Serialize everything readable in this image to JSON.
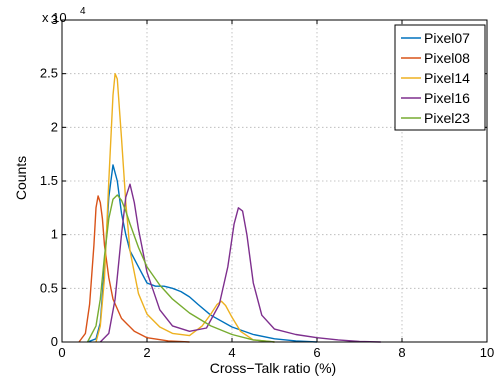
{
  "chart_data": {
    "type": "line",
    "xlabel": "Cross−Talk ratio (%)",
    "ylabel": "Counts",
    "xlim": [
      0,
      10
    ],
    "ylim": [
      0,
      30000
    ],
    "xticks": [
      0,
      2,
      4,
      6,
      8,
      10
    ],
    "xtick_labels": [
      "0",
      "2",
      "4",
      "6",
      "8",
      "10"
    ],
    "yticks": [
      0,
      5000,
      10000,
      15000,
      20000,
      25000,
      30000
    ],
    "ytick_labels": [
      "0",
      "0.5",
      "1",
      "1.5",
      "2",
      "2.5",
      "3"
    ],
    "y_multiplier": {
      "base": "x 10",
      "exponent": "4"
    },
    "grid": true,
    "legend_position": "top-right",
    "series": [
      {
        "name": "Pixel07",
        "color": "#0072bd",
        "x": [
          0.6,
          0.8,
          0.9,
          1.0,
          1.1,
          1.2,
          1.3,
          1.4,
          1.5,
          1.6,
          1.8,
          2.0,
          2.2,
          2.4,
          2.6,
          2.8,
          3.0,
          3.2,
          3.5,
          4.0,
          4.5,
          5.0,
          5.5,
          6.0
        ],
        "values": [
          0,
          300,
          1800,
          7000,
          13500,
          16500,
          15000,
          12000,
          10000,
          8500,
          7000,
          5500,
          5200,
          5200,
          5000,
          4700,
          4200,
          3500,
          2500,
          1400,
          700,
          300,
          100,
          0
        ]
      },
      {
        "name": "Pixel08",
        "color": "#d95319",
        "x": [
          0.4,
          0.55,
          0.65,
          0.75,
          0.8,
          0.85,
          0.9,
          0.95,
          1.0,
          1.1,
          1.2,
          1.4,
          1.7,
          2.0,
          2.5,
          3.0
        ],
        "values": [
          0,
          800,
          3500,
          9000,
          12500,
          13600,
          13000,
          11500,
          9000,
          6000,
          4000,
          2200,
          1000,
          400,
          100,
          0
        ]
      },
      {
        "name": "Pixel14",
        "color": "#edb120",
        "x": [
          0.8,
          0.9,
          1.0,
          1.1,
          1.2,
          1.25,
          1.3,
          1.4,
          1.5,
          1.6,
          1.8,
          2.0,
          2.3,
          2.6,
          3.0,
          3.3,
          3.5,
          3.65,
          3.75,
          3.85,
          4.0,
          4.2,
          4.5,
          5.0
        ],
        "values": [
          0,
          1500,
          6000,
          15000,
          23000,
          25000,
          24500,
          19000,
          13000,
          8500,
          4500,
          2600,
          1400,
          800,
          600,
          1500,
          2600,
          3500,
          3800,
          3400,
          2300,
          1000,
          200,
          0
        ]
      },
      {
        "name": "Pixel16",
        "color": "#7e2f8e",
        "x": [
          0.9,
          1.1,
          1.25,
          1.4,
          1.5,
          1.6,
          1.7,
          1.8,
          2.0,
          2.3,
          2.6,
          3.0,
          3.4,
          3.7,
          3.9,
          4.05,
          4.15,
          4.25,
          4.35,
          4.5,
          4.7,
          5.0,
          5.5,
          6.0,
          6.5,
          7.0,
          7.5
        ],
        "values": [
          0,
          800,
          4000,
          10000,
          13500,
          14700,
          13000,
          10500,
          6500,
          3000,
          1500,
          1000,
          1300,
          3500,
          7000,
          11000,
          12500,
          12200,
          10000,
          5500,
          2500,
          1200,
          700,
          400,
          200,
          50,
          0
        ]
      },
      {
        "name": "Pixel23",
        "color": "#77ac30",
        "x": [
          0.6,
          0.8,
          0.9,
          1.0,
          1.1,
          1.2,
          1.3,
          1.4,
          1.5,
          1.6,
          1.8,
          2.0,
          2.3,
          2.6,
          3.0,
          3.5,
          4.0,
          4.5,
          5.0
        ],
        "values": [
          0,
          1500,
          4000,
          8000,
          11500,
          13300,
          13700,
          13200,
          12200,
          11000,
          8800,
          7000,
          5300,
          4000,
          2700,
          1500,
          700,
          200,
          0
        ]
      }
    ]
  }
}
